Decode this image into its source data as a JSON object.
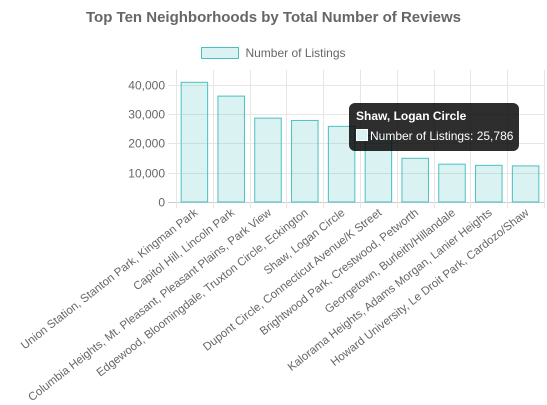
{
  "chart_data": {
    "type": "bar",
    "title": "Top Ten Neighborhoods by Total Number of Reviews",
    "categories": [
      "Union Station, Stanton Park, Kingman Park",
      "Capitol Hill, Lincoln Park",
      "Columbia Heights, Mt. Pleasant, Pleasant Plains, Park View",
      "Edgewood, Bloomingdale, Truxton Circle, Eckington",
      "Shaw, Logan Circle",
      "Dupont Circle, Connecticut Avenue/K Street",
      "Brightwood Park, Crestwood, Petworth",
      "Georgetown, Burleith/Hillandale",
      "Kalorama Heights, Adams Morgan, Lanier Heights",
      "Howard University, Le Droit Park, Cardozo/Shaw"
    ],
    "series": [
      {
        "name": "Number of Listings",
        "values": [
          40800,
          36100,
          28600,
          27800,
          25786,
          22700,
          14900,
          12900,
          12500,
          12300
        ]
      }
    ],
    "xlabel": "",
    "ylabel": "",
    "ylim": [
      0,
      45000
    ],
    "yticks": [
      0,
      10000,
      20000,
      30000,
      40000
    ],
    "ytick_labels": [
      "0",
      "10,000",
      "20,000",
      "30,000",
      "40,000"
    ],
    "grid": true,
    "legend_position": "top",
    "colors": {
      "bar_fill": "rgba(75,192,192,0.2)",
      "bar_border": "#4bc0c0",
      "grid": "#e6e6e6",
      "text": "#666666"
    }
  },
  "tooltip": {
    "title": "Shaw, Logan Circle",
    "label": "Number of Listings: 25,786"
  }
}
